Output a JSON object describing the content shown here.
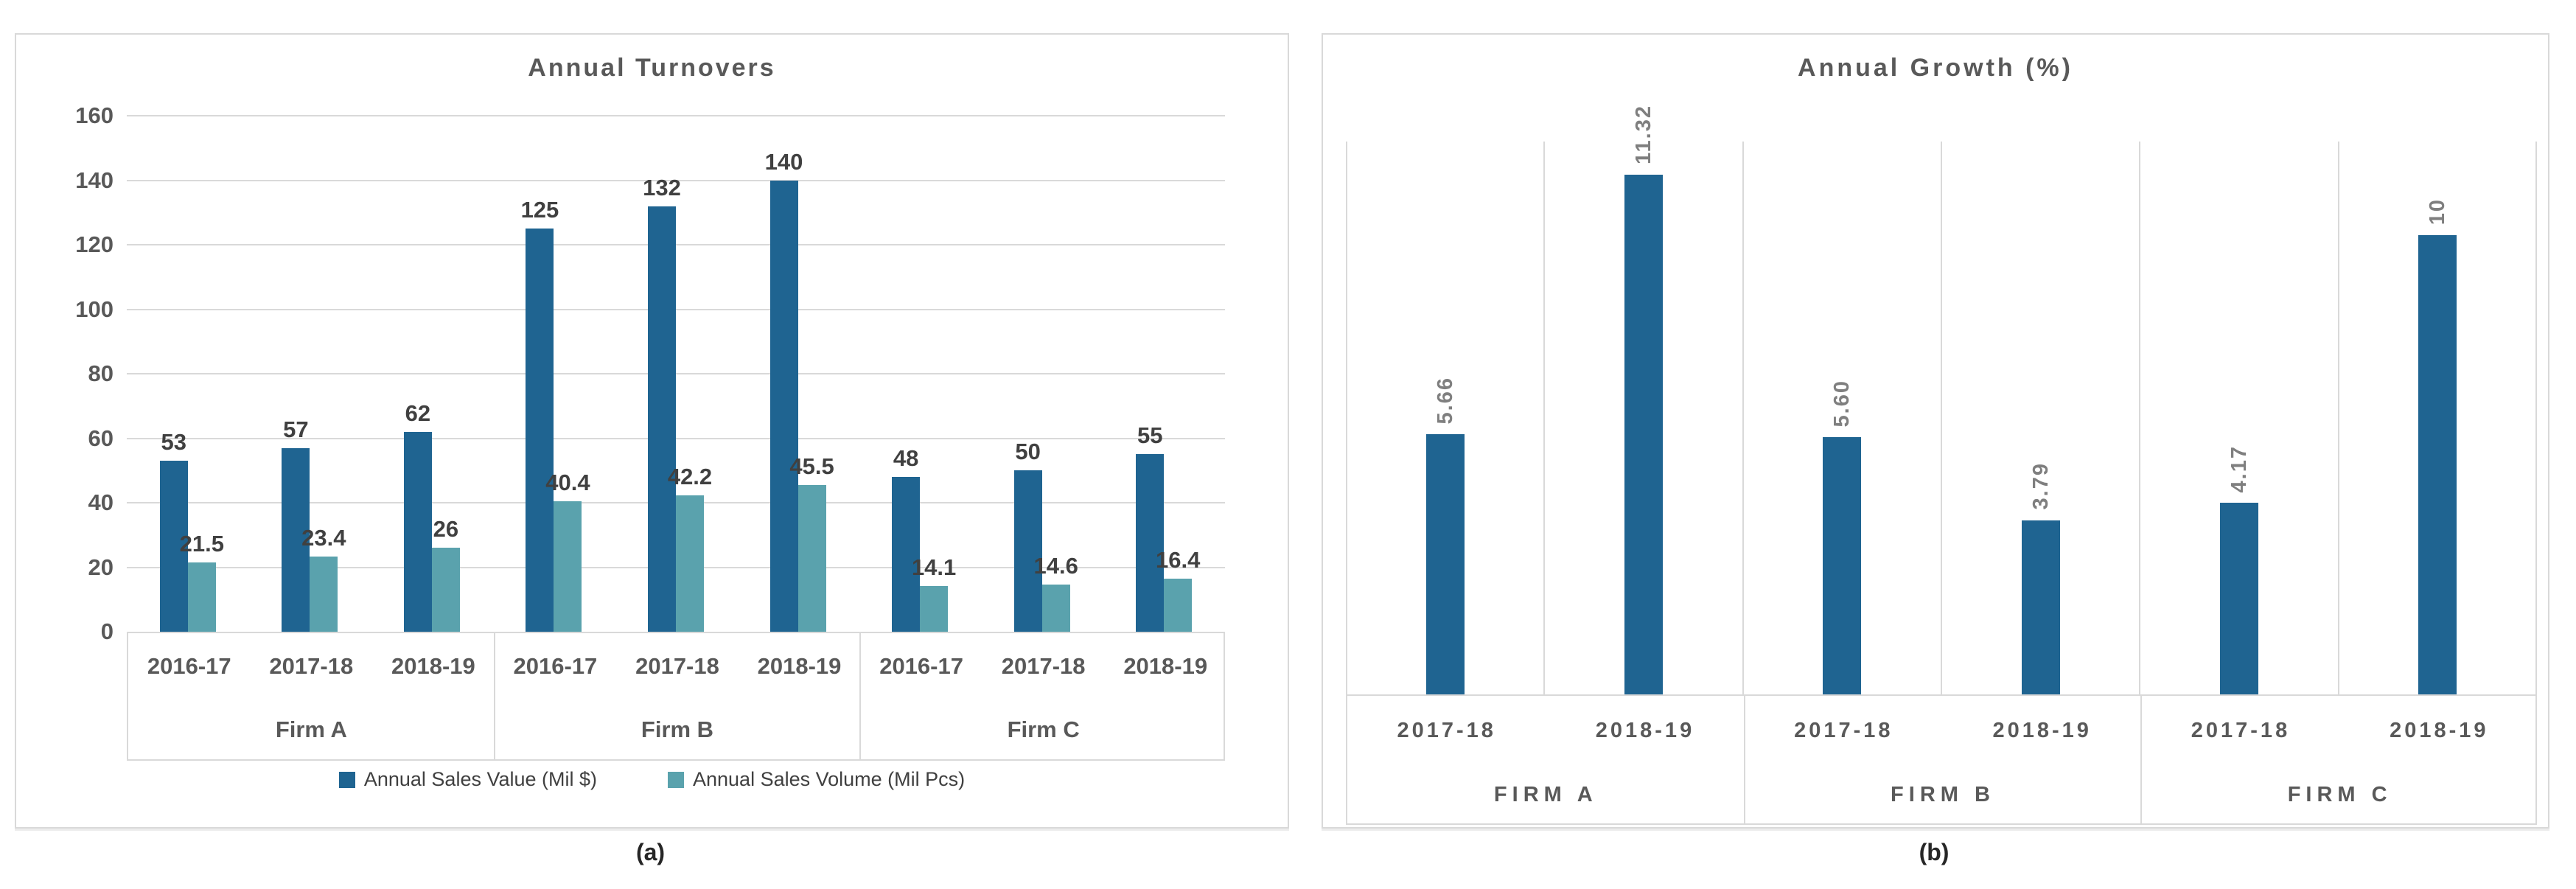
{
  "captions": {
    "a": "(a)",
    "b": "(b)"
  },
  "colors": {
    "sales_value_bar": "#1F6491",
    "sales_volume_bar": "#5AA2AD",
    "growth_bar": "#1F6491",
    "gridline": "#D9D9D9",
    "axis_text": "#595959",
    "data_label_a": "#404040",
    "data_label_b": "#7F7F7F"
  },
  "chart_data": [
    {
      "type": "bar",
      "title": "Annual Turnovers",
      "categories": [
        "2016-17",
        "2017-18",
        "2018-19",
        "2016-17",
        "2017-18",
        "2018-19",
        "2016-17",
        "2017-18",
        "2018-19"
      ],
      "group_labels": [
        "Firm A",
        "Firm B",
        "Firm C"
      ],
      "group_size": 3,
      "series": [
        {
          "name": "Annual Sales Value (Mil $)",
          "color": "#1F6491",
          "values": [
            53,
            57,
            62,
            125,
            132,
            140,
            48,
            50,
            55
          ],
          "data_labels": [
            "53",
            "57",
            "62",
            "125",
            "132",
            "140",
            "48",
            "50",
            "55"
          ]
        },
        {
          "name": "Annual Sales Volume (Mil Pcs)",
          "color": "#5AA2AD",
          "values": [
            21.5,
            23.4,
            26,
            40.4,
            42.2,
            45.5,
            14.1,
            14.6,
            16.4
          ],
          "data_labels": [
            "21.5",
            "23.4",
            "26",
            "40.4",
            "42.2",
            "45.5",
            "14.1",
            "14.6",
            "16.4"
          ]
        }
      ],
      "ylim": [
        0,
        160
      ],
      "ytick_step": 20,
      "grid": "horizontal",
      "legend_position": "bottom"
    },
    {
      "type": "bar",
      "title": "Annual Growth (%)",
      "categories": [
        "2017-18",
        "2018-19",
        "2017-18",
        "2018-19",
        "2017-18",
        "2018-19"
      ],
      "group_labels": [
        "FIRM A",
        "FIRM B",
        "FIRM C"
      ],
      "group_size": 2,
      "series": [
        {
          "name": "Annual Growth (%)",
          "color": "#1F6491",
          "values": [
            5.66,
            11.32,
            5.6,
            3.79,
            4.17,
            10
          ],
          "data_labels": [
            "5.66",
            "11.32",
            "5.60",
            "3.79",
            "4.17",
            "10"
          ]
        }
      ],
      "ylim": [
        0,
        12.04
      ],
      "grid": "vertical",
      "legend_position": "none",
      "data_label_rotation": 90
    }
  ]
}
